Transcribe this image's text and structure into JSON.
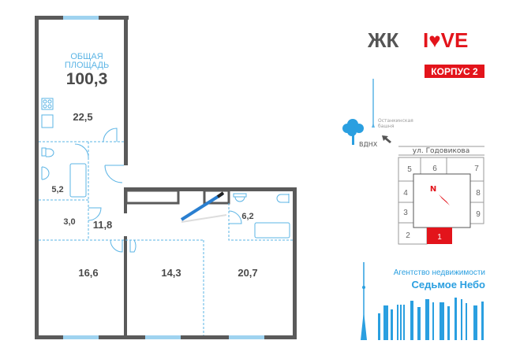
{
  "plan": {
    "total_area_label_line1": "ОБЩАЯ",
    "total_area_label_line2": "ПЛОЩАДЬ",
    "total_area": "100,3",
    "rooms": {
      "kitchen": "22,5",
      "bathroom_1": "5,2",
      "storage": "3,0",
      "hall": "11,8",
      "bedroom_left": "16,6",
      "bedroom_middle": "14,3",
      "bedroom_right": "20,7",
      "bathroom_2": "6,2"
    }
  },
  "brand": {
    "prefix": "ЖК",
    "name": "I♥VE",
    "building": "КОРПУС 2",
    "accent_color": "#e3141b"
  },
  "location_map": {
    "tower_label_line1": "Останкинская",
    "tower_label_line2": "башня",
    "park_label": "ВДНХ",
    "street": "ул. Годовикова",
    "compass_label": "N",
    "sections": [
      "1",
      "2",
      "3",
      "4",
      "5",
      "6",
      "7",
      "8",
      "9"
    ],
    "highlighted_section": "1"
  },
  "agency": {
    "line1": "Агентство недвижимости",
    "line2": "Седьмое Небо",
    "color": "#2a9fe0"
  }
}
